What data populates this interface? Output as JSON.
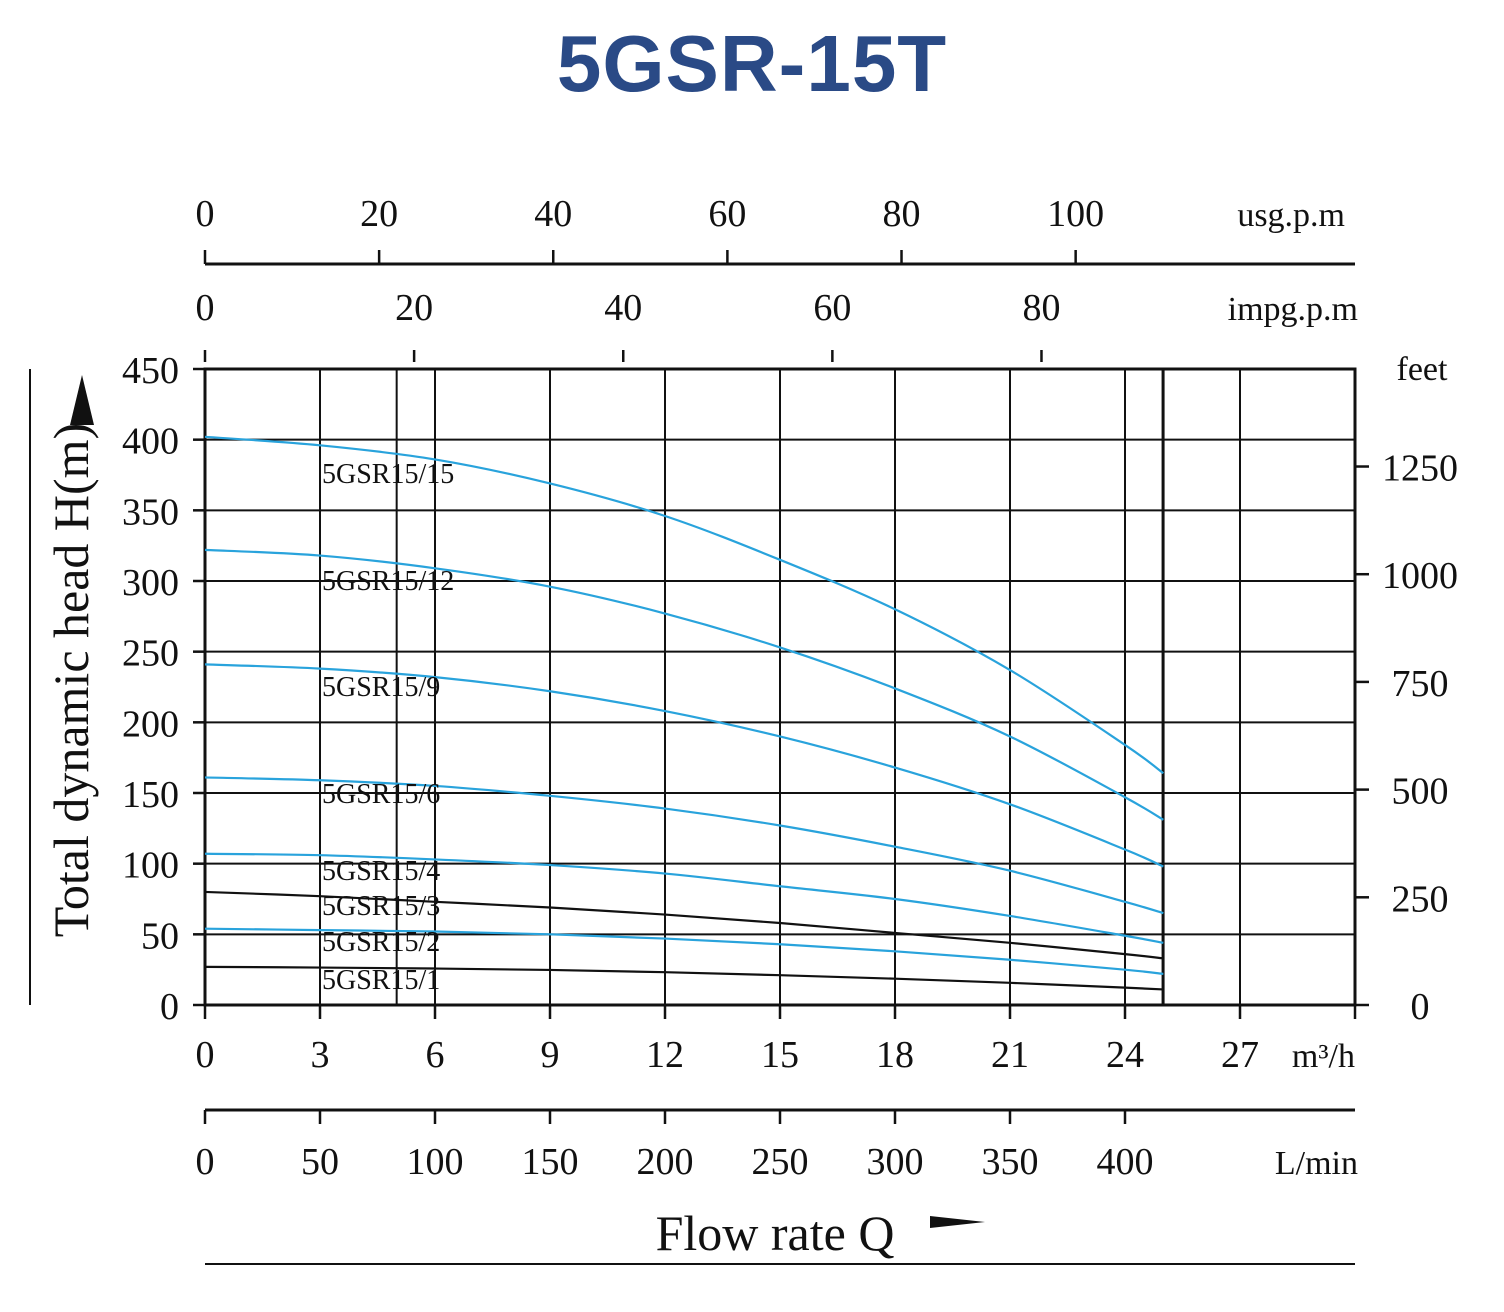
{
  "title": "5GSR-15T",
  "chart_data": {
    "type": "line",
    "title": "5GSR-15T",
    "xlabel": "Flow rate Q",
    "ylabel": "Total dynamic head H(m)",
    "x_unit": "m³/h",
    "xlim": [
      0,
      30
    ],
    "ylim": [
      0,
      450
    ],
    "grid": true,
    "x_ticks": [
      "0",
      "3",
      "6",
      "9",
      "12",
      "15",
      "18",
      "21",
      "24",
      "27"
    ],
    "y_ticks": [
      "0",
      "50",
      "100",
      "150",
      "200",
      "250",
      "300",
      "350",
      "400",
      "450"
    ],
    "secondary_axes": {
      "usgpm": {
        "unit": "usg.p.m",
        "ticks": [
          "0",
          "20",
          "40",
          "60",
          "80",
          "100"
        ]
      },
      "impgpm": {
        "unit": "impg.p.m",
        "ticks": [
          "0",
          "20",
          "40",
          "60",
          "80"
        ]
      },
      "lmin": {
        "unit": "L/min",
        "ticks": [
          "0",
          "50",
          "100",
          "150",
          "200",
          "250",
          "300",
          "350",
          "400"
        ]
      },
      "feet": {
        "unit": "feet",
        "ticks": [
          "0",
          "250",
          "500",
          "750",
          "1000",
          "1250"
        ]
      }
    },
    "colors": {
      "blue": "#29a3dc",
      "black": "#111111"
    },
    "x": [
      0,
      3,
      6,
      9,
      12,
      15,
      18,
      21,
      24,
      25
    ],
    "series": [
      {
        "name": "5GSR15/15",
        "color": "blue",
        "values": [
          402,
          396,
          386,
          369,
          346,
          315,
          280,
          237,
          184,
          164
        ]
      },
      {
        "name": "5GSR15/12",
        "color": "blue",
        "values": [
          322,
          318,
          309,
          296,
          277,
          253,
          224,
          190,
          147,
          131
        ]
      },
      {
        "name": "5GSR15/9",
        "color": "blue",
        "values": [
          241,
          238,
          232,
          222,
          208,
          190,
          168,
          142,
          110,
          98
        ]
      },
      {
        "name": "5GSR15/6",
        "color": "blue",
        "values": [
          161,
          159,
          155,
          148,
          139,
          127,
          112,
          95,
          73,
          65
        ]
      },
      {
        "name": "5GSR15/4",
        "color": "blue",
        "values": [
          107,
          106,
          103,
          99,
          93,
          84,
          75,
          63,
          49,
          44
        ]
      },
      {
        "name": "5GSR15/3",
        "color": "black",
        "values": [
          80,
          77,
          73,
          69,
          64,
          58,
          51,
          44,
          36,
          33
        ]
      },
      {
        "name": "5GSR15/2",
        "color": "blue",
        "values": [
          54,
          53,
          52,
          50,
          47,
          43,
          38,
          32,
          25,
          22
        ]
      },
      {
        "name": "5GSR15/1",
        "color": "black",
        "values": [
          27,
          26.5,
          25.8,
          24.8,
          23.2,
          21.1,
          18.6,
          15.7,
          12.3,
          11
        ]
      }
    ]
  }
}
